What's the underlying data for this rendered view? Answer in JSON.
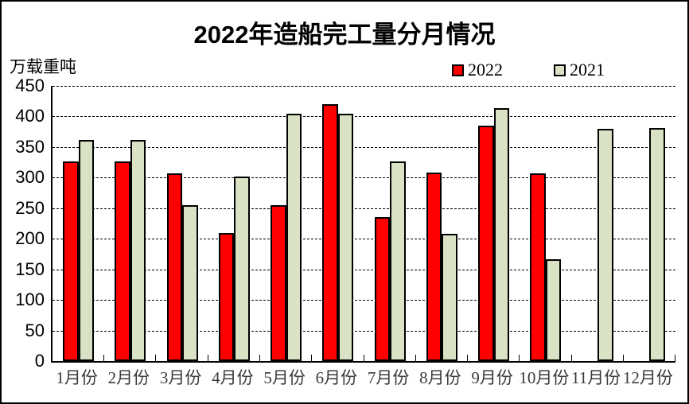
{
  "chart_data": {
    "type": "bar",
    "title": "2022年造船完工量分月情况",
    "unit_label": "万载重吨",
    "categories": [
      "1月份",
      "2月份",
      "3月份",
      "4月份",
      "5月份",
      "6月份",
      "7月份",
      "8月份",
      "9月份",
      "10月份",
      "11月份",
      "12月份"
    ],
    "series": [
      {
        "name": "2022",
        "color": "#FE0000",
        "values": [
          326,
          327,
          307,
          210,
          255,
          420,
          235,
          308,
          385,
          307,
          null,
          null
        ]
      },
      {
        "name": "2021",
        "color": "#D9E2C4",
        "values": [
          361,
          361,
          255,
          302,
          404,
          405,
          326,
          208,
          413,
          167,
          380,
          381
        ]
      }
    ],
    "ylim": [
      0,
      450
    ],
    "ytick_interval": 50,
    "yticks": [
      450,
      400,
      350,
      300,
      250,
      200,
      150,
      100,
      50,
      0
    ],
    "grid": "horizontal-dashed",
    "legend_position": "top-right",
    "bar_border_color": "#000000"
  }
}
